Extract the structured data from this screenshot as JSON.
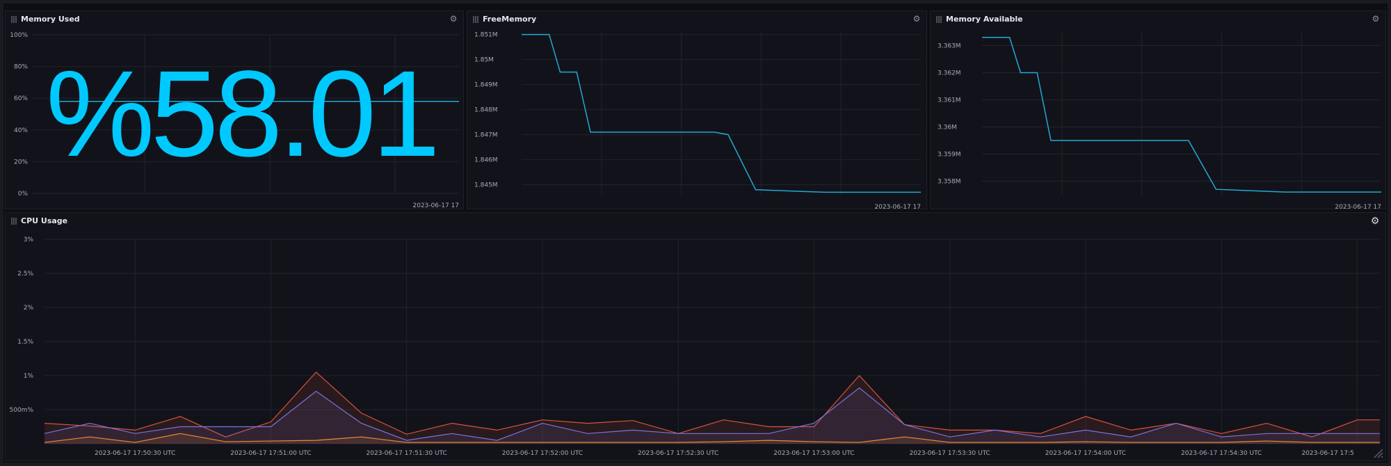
{
  "colors": {
    "background": "#0d0e12",
    "panel": "#12131a",
    "grid": "#22232c",
    "axis_text": "#a9abb5",
    "single_stat": "#00c9ff",
    "memory_line": "#22a9d6",
    "cpu_series_red": "#d9523f",
    "cpu_series_purple": "#7b73d9",
    "cpu_series_orange": "#f08a2c"
  },
  "panels": {
    "memory_used": {
      "title": "Memory Used",
      "value_text": "%58.01",
      "value": 58.01,
      "y_ticks": [
        "100%",
        "80%",
        "60%",
        "40%",
        "20%",
        "0%"
      ],
      "x_tick": "2023-06-17 17"
    },
    "free_memory": {
      "title": "FreeMemory",
      "x_tick": "2023-06-17 17"
    },
    "memory_available": {
      "title": "Memory Available",
      "x_tick": "2023-06-17 17"
    },
    "cpu_usage": {
      "title": "CPU Usage"
    }
  },
  "chart_data": [
    {
      "type": "line",
      "panel": "free_memory",
      "title": "FreeMemory",
      "y_ticks": [
        "1.851M",
        "1.85M",
        "1.849M",
        "1.848M",
        "1.847M",
        "1.846M",
        "1.845M"
      ],
      "y_tick_values": [
        1.851,
        1.85,
        1.849,
        1.848,
        1.847,
        1.846,
        1.845
      ],
      "ylim": [
        1.8446,
        1.8511
      ],
      "x": [
        0,
        1,
        1.4,
        2.0,
        2.5,
        6,
        7,
        7.5,
        8.5,
        11,
        14.5
      ],
      "series": [
        {
          "values": [
            1.851,
            1.851,
            1.8495,
            1.8495,
            1.8471,
            1.8471,
            1.8471,
            1.847,
            1.8448,
            1.8447,
            1.8447
          ]
        }
      ],
      "x_tick": "2023-06-17 17"
    },
    {
      "type": "line",
      "panel": "memory_available",
      "title": "Memory Available",
      "y_ticks": [
        "3.363M",
        "3.362M",
        "3.361M",
        "3.36M",
        "3.359M",
        "3.358M"
      ],
      "y_tick_values": [
        3.363,
        3.362,
        3.361,
        3.36,
        3.359,
        3.358
      ],
      "ylim": [
        3.3575,
        3.3635
      ],
      "x": [
        0,
        1,
        1.4,
        2.0,
        2.5,
        6,
        7,
        7.5,
        8.5,
        11,
        14.5
      ],
      "series": [
        {
          "values": [
            3.3633,
            3.3633,
            3.362,
            3.362,
            3.3595,
            3.3595,
            3.3595,
            3.3595,
            3.3577,
            3.3576,
            3.3576
          ]
        }
      ],
      "x_tick": "2023-06-17 17"
    },
    {
      "type": "area",
      "panel": "cpu_usage",
      "title": "CPU Usage",
      "y_ticks": [
        "3%",
        "2.5%",
        "2%",
        "1.5%",
        "1%",
        "500m%"
      ],
      "y_tick_values": [
        3,
        2.5,
        2,
        1.5,
        1,
        0.5
      ],
      "ylim": [
        0,
        3
      ],
      "x_ticks": [
        "2023-06-17 17:50:30 UTC",
        "2023-06-17 17:51:00 UTC",
        "2023-06-17 17:51:30 UTC",
        "2023-06-17 17:52:00 UTC",
        "2023-06-17 17:52:30 UTC",
        "2023-06-17 17:53:00 UTC",
        "2023-06-17 17:53:30 UTC",
        "2023-06-17 17:54:00 UTC",
        "2023-06-17 17:54:30 UTC",
        "2023-06-17 17:5"
      ],
      "x_tick_values": [
        30,
        60,
        90,
        120,
        150,
        180,
        210,
        240,
        270,
        300
      ],
      "xlim": [
        10,
        305
      ],
      "x": [
        10,
        20,
        30,
        40,
        50,
        60,
        70,
        80,
        90,
        100,
        110,
        120,
        130,
        140,
        150,
        160,
        170,
        180,
        190,
        200,
        210,
        220,
        230,
        240,
        250,
        260,
        270,
        280,
        290,
        300,
        305
      ],
      "series": [
        {
          "color": "#d9523f",
          "values": [
            0.3,
            0.26,
            0.2,
            0.4,
            0.1,
            0.32,
            1.05,
            0.45,
            0.14,
            0.3,
            0.2,
            0.35,
            0.3,
            0.34,
            0.15,
            0.35,
            0.25,
            0.25,
            1.0,
            0.28,
            0.2,
            0.2,
            0.15,
            0.4,
            0.2,
            0.3,
            0.15,
            0.3,
            0.1,
            0.35,
            0.35
          ]
        },
        {
          "color": "#7b73d9",
          "values": [
            0.15,
            0.3,
            0.15,
            0.25,
            0.25,
            0.25,
            0.77,
            0.3,
            0.05,
            0.15,
            0.05,
            0.3,
            0.15,
            0.2,
            0.15,
            0.15,
            0.15,
            0.3,
            0.82,
            0.28,
            0.1,
            0.2,
            0.1,
            0.2,
            0.1,
            0.3,
            0.1,
            0.15,
            0.15,
            0.15,
            0.15
          ]
        },
        {
          "color": "#f08a2c",
          "values": [
            0.02,
            0.1,
            0.02,
            0.15,
            0.03,
            0.04,
            0.05,
            0.1,
            0.02,
            0.02,
            0.02,
            0.02,
            0.02,
            0.02,
            0.02,
            0.03,
            0.05,
            0.03,
            0.02,
            0.1,
            0.02,
            0.02,
            0.02,
            0.03,
            0.02,
            0.02,
            0.02,
            0.04,
            0.02,
            0.02,
            0.02
          ]
        }
      ]
    }
  ]
}
